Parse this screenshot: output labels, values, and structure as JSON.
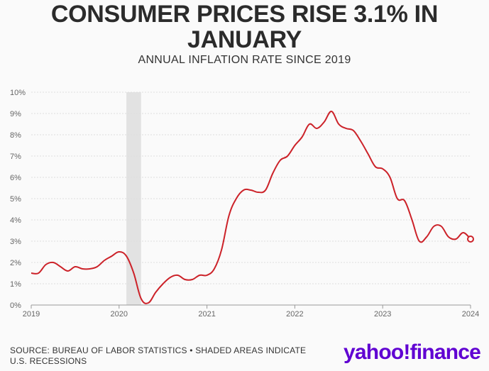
{
  "header": {
    "title": "CONSUMER PRICES RISE 3.1% IN JANUARY",
    "subtitle": "ANNUAL INFLATION RATE SINCE 2019"
  },
  "footer": {
    "source": "SOURCE: BUREAU OF LABOR STATISTICS • SHADED AREAS INDICATE U.S. RECESSIONS",
    "logo": "yahoo!finance"
  },
  "colors": {
    "line": "#cc2229",
    "recession": "#e2e2e2",
    "grid": "#dddddd",
    "logo": "#6001d2"
  },
  "chart_data": {
    "type": "line",
    "title": "CONSUMER PRICES RISE 3.1% IN JANUARY",
    "subtitle": "ANNUAL INFLATION RATE SINCE 2019",
    "xlabel": "",
    "ylabel": "",
    "xlim": [
      "2019-01",
      "2024-01"
    ],
    "ylim": [
      0,
      10
    ],
    "x_ticks": [
      "2019",
      "2020",
      "2021",
      "2022",
      "2023",
      "2024"
    ],
    "y_ticks": [
      "0%",
      "1%",
      "2%",
      "3%",
      "4%",
      "5%",
      "6%",
      "7%",
      "8%",
      "9%",
      "10%"
    ],
    "grid": true,
    "recession_shading": [
      {
        "start": "2020-02",
        "end": "2020-04"
      }
    ],
    "end_marker": {
      "x": "2024-01",
      "y": 3.1
    },
    "series": [
      {
        "x": [
          "2019-01",
          "2019-02",
          "2019-03",
          "2019-04",
          "2019-05",
          "2019-06",
          "2019-07",
          "2019-08",
          "2019-09",
          "2019-10",
          "2019-11",
          "2019-12",
          "2020-01",
          "2020-02",
          "2020-03",
          "2020-04",
          "2020-05",
          "2020-06",
          "2020-07",
          "2020-08",
          "2020-09",
          "2020-10",
          "2020-11",
          "2020-12",
          "2021-01",
          "2021-02",
          "2021-03",
          "2021-04",
          "2021-05",
          "2021-06",
          "2021-07",
          "2021-08",
          "2021-09",
          "2021-10",
          "2021-11",
          "2021-12",
          "2022-01",
          "2022-02",
          "2022-03",
          "2022-04",
          "2022-05",
          "2022-06",
          "2022-07",
          "2022-08",
          "2022-09",
          "2022-10",
          "2022-11",
          "2022-12",
          "2023-01",
          "2023-02",
          "2023-03",
          "2023-04",
          "2023-05",
          "2023-06",
          "2023-07",
          "2023-08",
          "2023-09",
          "2023-10",
          "2023-11",
          "2023-12",
          "2024-01"
        ],
        "values": [
          1.5,
          1.5,
          1.9,
          2.0,
          1.8,
          1.6,
          1.8,
          1.7,
          1.7,
          1.8,
          2.1,
          2.3,
          2.5,
          2.3,
          1.5,
          0.3,
          0.1,
          0.6,
          1.0,
          1.3,
          1.4,
          1.2,
          1.2,
          1.4,
          1.4,
          1.7,
          2.6,
          4.2,
          5.0,
          5.4,
          5.4,
          5.3,
          5.4,
          6.2,
          6.8,
          7.0,
          7.5,
          7.9,
          8.5,
          8.3,
          8.6,
          9.1,
          8.5,
          8.3,
          8.2,
          7.7,
          7.1,
          6.5,
          6.4,
          6.0,
          5.0,
          4.9,
          4.0,
          3.0,
          3.2,
          3.7,
          3.7,
          3.2,
          3.1,
          3.4,
          3.1
        ]
      }
    ]
  }
}
